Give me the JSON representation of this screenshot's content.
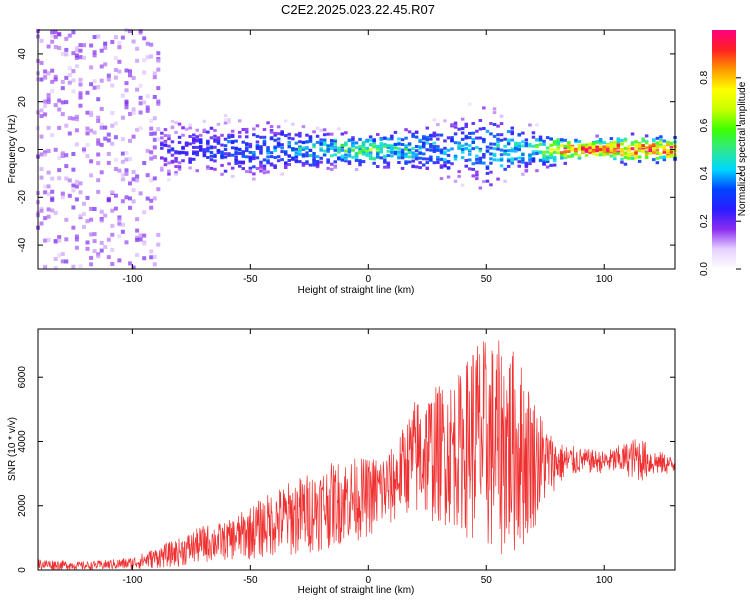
{
  "figure": {
    "title": "C2E2.2025.023.22.45.R07"
  },
  "chart_data": [
    {
      "type": "heatmap",
      "xlabel": "Height of straight line (km)",
      "ylabel": "Frequency (Hz)",
      "xlim": [
        -140,
        130
      ],
      "ylim": [
        -50,
        50
      ],
      "xticks": [
        -100,
        -50,
        0,
        50,
        100
      ],
      "yticks": [
        -40,
        -20,
        0,
        20,
        40
      ],
      "colorbar": {
        "label": "Normalized spectral amplitude",
        "range": [
          0,
          1
        ],
        "ticks": [
          "0.0",
          "0.2",
          "0.4",
          "0.6",
          "0.8"
        ],
        "colormap": [
          "#ffffff",
          "#e6d0ff",
          "#8b2cf0",
          "#2a1cff",
          "#0044ff",
          "#00d8ff",
          "#2fe88a",
          "#3dff00",
          "#c8ff00",
          "#ffff00",
          "#ff9a00",
          "#ff2020",
          "#ff0080"
        ]
      },
      "description_points": [
        {
          "x": -130,
          "spread": 50,
          "amplitude": 0.12
        },
        {
          "x": -110,
          "spread": 50,
          "amplitude": 0.14
        },
        {
          "x": -95,
          "spread": 12,
          "amplitude": 0.22
        },
        {
          "x": -75,
          "spread": 10,
          "amplitude": 0.25
        },
        {
          "x": -50,
          "spread": 11,
          "amplitude": 0.32
        },
        {
          "x": -25,
          "spread": 7,
          "amplitude": 0.4
        },
        {
          "x": 0,
          "spread": 6,
          "amplitude": 0.55
        },
        {
          "x": 25,
          "spread": 10,
          "amplitude": 0.35
        },
        {
          "x": 50,
          "spread": 14,
          "amplitude": 0.38
        },
        {
          "x": 70,
          "spread": 8,
          "amplitude": 0.45
        },
        {
          "x": 90,
          "spread": 3,
          "amplitude": 0.95
        },
        {
          "x": 110,
          "spread": 5,
          "amplitude": 0.85
        },
        {
          "x": 130,
          "spread": 4,
          "amplitude": 0.9
        }
      ]
    },
    {
      "type": "line",
      "xlabel": "Height of straight line (km)",
      "ylabel": "SNR (10 * v/v)",
      "xlim": [
        -140,
        130
      ],
      "ylim": [
        0,
        7500
      ],
      "xticks": [
        -100,
        -50,
        0,
        50,
        100
      ],
      "yticks": [
        0,
        2000,
        4000,
        6000
      ],
      "color": "#f03030",
      "envelope": {
        "x": [
          -140,
          -120,
          -100,
          -90,
          -80,
          -70,
          -60,
          -50,
          -40,
          -30,
          -20,
          -10,
          0,
          10,
          15,
          20,
          30,
          40,
          45,
          50,
          60,
          65,
          70,
          75,
          80,
          90,
          100,
          110,
          115,
          120,
          130
        ],
        "low": [
          0,
          0,
          0,
          50,
          100,
          200,
          300,
          300,
          400,
          400,
          600,
          800,
          1000,
          1300,
          1800,
          1500,
          1400,
          1200,
          600,
          400,
          300,
          500,
          1200,
          2000,
          2600,
          3000,
          3000,
          2900,
          2700,
          2900,
          3000
        ],
        "high": [
          350,
          250,
          400,
          700,
          1000,
          1400,
          1500,
          2000,
          2500,
          2900,
          3200,
          3500,
          3500,
          3800,
          4500,
          5400,
          5800,
          6200,
          7400,
          7200,
          7100,
          6500,
          5500,
          4600,
          4000,
          3800,
          3700,
          4000,
          4200,
          3800,
          3500
        ]
      }
    }
  ]
}
